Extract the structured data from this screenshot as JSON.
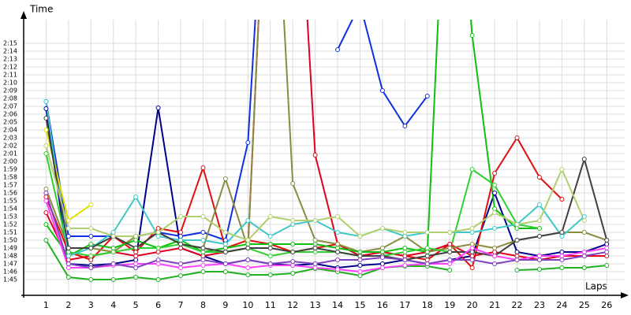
{
  "chart_data": {
    "type": "line",
    "y_label": "Time",
    "x_label": "Laps",
    "xlim": [
      0,
      26.8
    ],
    "ylim": [
      103,
      138
    ],
    "grid": true,
    "x": [
      1,
      2,
      3,
      4,
      5,
      6,
      7,
      8,
      9,
      10,
      11,
      12,
      13,
      14,
      15,
      16,
      17,
      18,
      19,
      20,
      21,
      22,
      23,
      24,
      25,
      26
    ],
    "xticks": [
      1,
      2,
      3,
      4,
      5,
      6,
      7,
      8,
      9,
      10,
      11,
      12,
      13,
      14,
      15,
      16,
      17,
      18,
      19,
      20,
      21,
      22,
      23,
      24,
      25,
      26
    ],
    "yticks": [
      {
        "value": 105,
        "label": "1:45"
      },
      {
        "value": 106,
        "label": "1:46"
      },
      {
        "value": 107,
        "label": "1:47"
      },
      {
        "value": 108,
        "label": "1:48"
      },
      {
        "value": 109,
        "label": "1:49"
      },
      {
        "value": 110,
        "label": "1:50"
      },
      {
        "value": 111,
        "label": "1:51"
      },
      {
        "value": 112,
        "label": "1:52"
      },
      {
        "value": 113,
        "label": "1:53"
      },
      {
        "value": 114,
        "label": "1:54"
      },
      {
        "value": 115,
        "label": "1:55"
      },
      {
        "value": 116,
        "label": "1:56"
      },
      {
        "value": 117,
        "label": "1:57"
      },
      {
        "value": 118,
        "label": "1:58"
      },
      {
        "value": 119,
        "label": "1:59"
      },
      {
        "value": 120,
        "label": "2:00"
      },
      {
        "value": 121,
        "label": "2:01"
      },
      {
        "value": 122,
        "label": "2:02"
      },
      {
        "value": 123,
        "label": "2:03"
      },
      {
        "value": 124,
        "label": "2:04"
      },
      {
        "value": 125,
        "label": "2:05"
      },
      {
        "value": 126,
        "label": "2:06"
      },
      {
        "value": 127,
        "label": "2:07"
      },
      {
        "value": 128,
        "label": "2:08"
      },
      {
        "value": 129,
        "label": "2:09"
      },
      {
        "value": 130,
        "label": "2:10"
      },
      {
        "value": 131,
        "label": "2:11"
      },
      {
        "value": 132,
        "label": "2:12"
      },
      {
        "value": 133,
        "label": "2:13"
      },
      {
        "value": 134,
        "label": "2:14"
      },
      {
        "value": 135,
        "label": "2:15"
      }
    ],
    "series": [
      {
        "color": "#1030e0",
        "values": [
          127.6,
          110.5,
          110.5,
          110.5,
          110.5,
          111,
          110.5,
          111,
          110,
          122.4,
          170,
          null,
          null,
          134.2,
          140,
          129,
          124.5,
          128.3,
          null,
          null,
          null,
          null,
          null,
          null,
          null,
          null
        ]
      },
      {
        "color": "#00008b",
        "values": [
          126.7,
          107,
          106.8,
          107,
          107.5,
          126.8,
          109,
          108,
          107,
          107.5,
          107,
          106.8,
          107,
          106.5,
          106.8,
          107,
          107.5,
          107,
          107.5,
          108,
          116,
          108.5,
          108,
          108.5,
          108.5,
          109.5
        ]
      },
      {
        "color": "#e01010",
        "values": [
          115.5,
          108.5,
          107.5,
          110.5,
          108.5,
          111.5,
          111,
          119.2,
          109,
          110,
          109.5,
          108.5,
          109,
          109.5,
          108,
          108.5,
          108,
          107.5,
          109.5,
          106.5,
          118.5,
          123,
          118,
          115.2,
          null,
          null
        ]
      },
      {
        "color": "#e00020",
        "values": [
          113.5,
          107.5,
          108,
          108.5,
          108,
          108.5,
          109,
          108,
          108.5,
          109,
          170,
          170,
          120.8,
          109.5,
          108,
          108.5,
          108,
          108.5,
          109.5,
          108,
          108.5,
          108,
          107.5,
          108,
          108,
          108
        ]
      },
      {
        "color": "#8b8b40",
        "values": [
          116.5,
          109,
          109,
          108.5,
          110.5,
          111,
          109.5,
          109,
          117.8,
          109,
          170,
          117.2,
          110,
          109.5,
          108.5,
          109,
          110.5,
          108.5,
          109,
          109.5,
          109,
          110,
          110.5,
          111,
          111,
          110
        ]
      },
      {
        "color": "#10c010",
        "values": [
          112,
          108,
          109.5,
          109,
          110,
          109,
          110,
          108.5,
          109,
          109.5,
          109.5,
          109.5,
          109.5,
          109,
          108.5,
          108.5,
          109,
          108.5,
          170,
          136,
          114,
          111.5,
          111.5,
          null,
          null,
          null
        ]
      },
      {
        "color": "#30d030",
        "values": [
          121,
          108.5,
          108,
          108.5,
          109,
          109,
          109.5,
          108.5,
          108.5,
          109,
          108,
          108.5,
          108.5,
          108.5,
          108,
          108,
          108.5,
          109,
          108.5,
          119,
          117,
          112,
          111.5,
          null,
          null,
          null
        ]
      },
      {
        "color": "#20b020",
        "values": [
          110,
          105.3,
          105,
          105,
          105.3,
          105,
          105.5,
          106,
          106,
          105.6,
          105.6,
          105.8,
          106.4,
          106,
          105.5,
          106.5,
          106.7,
          106.7,
          106.2,
          null,
          null,
          106.2,
          106.3,
          106.5,
          106.5,
          106.8
        ]
      },
      {
        "color": "#40c8c8",
        "values": [
          127.6,
          108,
          109,
          111,
          115.5,
          110.5,
          110,
          110,
          109.5,
          112.5,
          110.5,
          112,
          112.5,
          111,
          110.5,
          111.5,
          110.5,
          111,
          111,
          111,
          111.5,
          112,
          114.5,
          110.5,
          113,
          null
        ]
      },
      {
        "color": "#e0e000",
        "values": [
          124,
          112.5,
          114.5,
          null,
          null,
          null,
          null,
          null,
          null,
          null,
          null,
          null,
          null,
          null,
          null,
          null,
          null,
          null,
          null,
          null,
          null,
          null,
          null,
          null,
          null,
          null
        ]
      },
      {
        "color": "#404040",
        "values": [
          125.5,
          109,
          109,
          110.5,
          109,
          111,
          109.5,
          109,
          108.5,
          109,
          109,
          108.5,
          109,
          108.5,
          108,
          108,
          107.5,
          108,
          108.5,
          108.5,
          108,
          110,
          110.5,
          111,
          120.3,
          110
        ]
      },
      {
        "color": "#b0d070",
        "values": [
          122,
          111.5,
          111.5,
          110.5,
          110.5,
          111,
          113,
          113,
          111,
          110,
          113,
          112.5,
          112.5,
          113,
          110.5,
          111.5,
          111,
          111,
          111,
          111.5,
          113.5,
          112,
          112.5,
          119,
          112.5,
          null
        ]
      },
      {
        "color": "#ff40ff",
        "values": [
          115,
          106.5,
          106.5,
          106.8,
          107,
          107,
          106.5,
          106.8,
          107,
          106.5,
          106.8,
          106.8,
          106.5,
          106.3,
          106,
          106.5,
          106.8,
          107,
          107,
          109,
          108,
          107.5,
          108,
          108,
          108.5,
          109
        ]
      },
      {
        "color": "#8040c0",
        "values": [
          116,
          107,
          106.5,
          107,
          106.5,
          107.5,
          107,
          107.5,
          107,
          107.5,
          107,
          107.3,
          107,
          107.5,
          107.5,
          107.8,
          107.5,
          107,
          107.5,
          107.5,
          107,
          107.5,
          107.5,
          107.5,
          108,
          108.5
        ]
      }
    ]
  }
}
